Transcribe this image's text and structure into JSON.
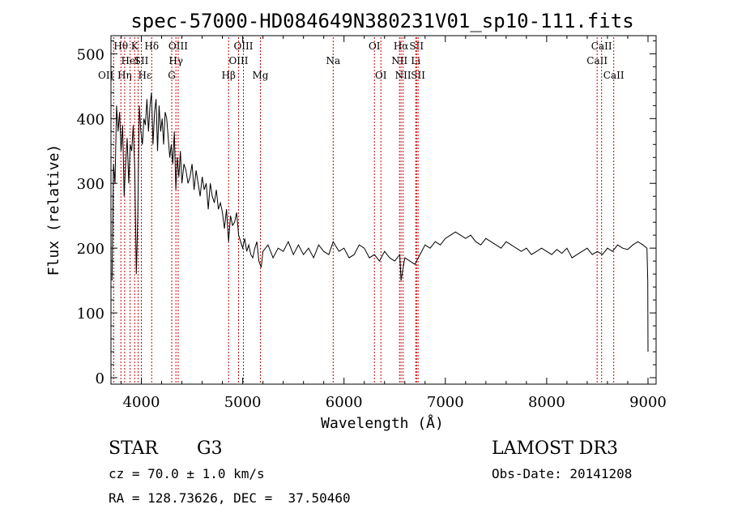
{
  "chart_data": {
    "type": "line",
    "title": "spec-57000-HD084649N380231V01_sp10-111.fits",
    "xlabel": "Wavelength (Å)",
    "ylabel": "Flux (relative)",
    "xlim": [
      3700,
      9080
    ],
    "ylim": [
      -10,
      528
    ],
    "x_ticks": [
      4000,
      5000,
      6000,
      7000,
      8000,
      9000
    ],
    "y_ticks": [
      0,
      100,
      200,
      300,
      400,
      500
    ],
    "grid": false,
    "line_color": "#000000",
    "marker_color": "#cc0000",
    "series": [
      {
        "x": [
          3710,
          3725,
          3740,
          3755,
          3770,
          3785,
          3800,
          3815,
          3830,
          3845,
          3860,
          3875,
          3890,
          3905,
          3920,
          3935,
          3950,
          3965,
          3980,
          3995,
          4010,
          4025,
          4040,
          4055,
          4070,
          4085,
          4100,
          4115,
          4130,
          4145,
          4160,
          4175,
          4190,
          4205,
          4220,
          4235,
          4250,
          4265,
          4280,
          4295,
          4310,
          4325,
          4340,
          4355,
          4370,
          4385,
          4400,
          4420,
          4440,
          4460,
          4480,
          4500,
          4520,
          4540,
          4560,
          4580,
          4600,
          4620,
          4640,
          4660,
          4680,
          4700,
          4720,
          4740,
          4760,
          4780,
          4800,
          4820,
          4840,
          4861,
          4880,
          4900,
          4920,
          4940,
          4960,
          4980,
          5000,
          5020,
          5040,
          5060,
          5080,
          5100,
          5120,
          5140,
          5160,
          5183,
          5200,
          5250,
          5300,
          5350,
          5400,
          5450,
          5500,
          5550,
          5600,
          5650,
          5700,
          5750,
          5800,
          5850,
          5893,
          5950,
          6000,
          6050,
          6100,
          6150,
          6200,
          6250,
          6300,
          6350,
          6400,
          6450,
          6500,
          6550,
          6563,
          6600,
          6650,
          6700,
          6750,
          6800,
          6850,
          6900,
          6950,
          7000,
          7050,
          7100,
          7150,
          7200,
          7250,
          7300,
          7350,
          7400,
          7450,
          7500,
          7550,
          7600,
          7650,
          7700,
          7750,
          7800,
          7850,
          7900,
          7950,
          8000,
          8050,
          8100,
          8150,
          8200,
          8250,
          8300,
          8350,
          8400,
          8450,
          8500,
          8550,
          8600,
          8650,
          8700,
          8750,
          8800,
          8850,
          8900,
          8950,
          8990,
          8998,
          9000
        ],
        "y": [
          150,
          330,
          300,
          420,
          380,
          410,
          350,
          390,
          280,
          330,
          370,
          300,
          360,
          350,
          390,
          320,
          160,
          250,
          420,
          380,
          360,
          400,
          390,
          430,
          380,
          420,
          440,
          360,
          410,
          430,
          350,
          420,
          380,
          400,
          360,
          410,
          400,
          370,
          340,
          360,
          330,
          380,
          290,
          340,
          310,
          350,
          300,
          330,
          320,
          300,
          310,
          330,
          290,
          320,
          300,
          280,
          310,
          290,
          300,
          260,
          300,
          280,
          270,
          290,
          260,
          270,
          255,
          230,
          260,
          210,
          250,
          235,
          240,
          255,
          220,
          210,
          200,
          215,
          195,
          205,
          190,
          185,
          200,
          210,
          180,
          170,
          195,
          205,
          185,
          200,
          195,
          210,
          190,
          205,
          190,
          200,
          185,
          205,
          195,
          190,
          210,
          195,
          200,
          185,
          190,
          205,
          200,
          185,
          190,
          180,
          195,
          185,
          180,
          190,
          150,
          185,
          180,
          175,
          190,
          205,
          200,
          210,
          205,
          215,
          220,
          225,
          220,
          215,
          220,
          210,
          205,
          215,
          210,
          205,
          200,
          210,
          205,
          200,
          195,
          200,
          190,
          195,
          200,
          195,
          190,
          198,
          192,
          200,
          185,
          190,
          195,
          200,
          190,
          195,
          190,
          200,
          195,
          205,
          200,
          198,
          205,
          210,
          205,
          200,
          150,
          40
        ]
      }
    ],
    "line_markers": [
      {
        "x": 3727,
        "label": "OII",
        "row": 2,
        "anchor": "end"
      },
      {
        "x": 3798,
        "label": "Hθ",
        "row": 0,
        "anchor": "middle"
      },
      {
        "x": 3835,
        "label": "Hη",
        "row": 2,
        "anchor": "middle"
      },
      {
        "x": 3889,
        "label": "HeI",
        "row": 1,
        "anchor": "middle"
      },
      {
        "x": 3934,
        "label": "K",
        "row": 0,
        "anchor": "middle"
      },
      {
        "x": 3968,
        "label": "Hε",
        "row": 2,
        "anchor": "start"
      },
      {
        "x": 4000,
        "label": "SII",
        "row": 1,
        "anchor": "middle"
      },
      {
        "x": 4102,
        "label": "Hδ",
        "row": 0,
        "anchor": "middle"
      },
      {
        "x": 4300,
        "label": "G",
        "row": 2,
        "anchor": "middle"
      },
      {
        "x": 4341,
        "label": "Hγ",
        "row": 1,
        "anchor": "middle"
      },
      {
        "x": 4363,
        "label": "OIII",
        "row": 0,
        "anchor": "middle"
      },
      {
        "x": 4861,
        "label": "Hβ",
        "row": 2,
        "anchor": "middle"
      },
      {
        "x": 4959,
        "label": "OIII",
        "row": 1,
        "anchor": "middle"
      },
      {
        "x": 5007,
        "label": "OIII",
        "row": 0,
        "anchor": "middle"
      },
      {
        "x": 5175,
        "label": "Mg",
        "row": 2,
        "anchor": "middle"
      },
      {
        "x": 5893,
        "label": "Na",
        "row": 1,
        "anchor": "middle"
      },
      {
        "x": 6300,
        "label": "OI",
        "row": 0,
        "anchor": "middle"
      },
      {
        "x": 6364,
        "label": "OI",
        "row": 2,
        "anchor": "middle"
      },
      {
        "x": 6548,
        "label": "NII",
        "row": 1,
        "anchor": "middle"
      },
      {
        "x": 6563,
        "label": "Hα",
        "row": 0,
        "anchor": "middle"
      },
      {
        "x": 6583,
        "label": "NII",
        "row": 2,
        "anchor": "middle"
      },
      {
        "x": 6708,
        "label": "Li",
        "row": 1,
        "anchor": "middle"
      },
      {
        "x": 6716,
        "label": "SII",
        "row": 0,
        "anchor": "middle"
      },
      {
        "x": 6731,
        "label": "SII",
        "row": 2,
        "anchor": "middle"
      },
      {
        "x": 8498,
        "label": "CaII",
        "row": 1,
        "anchor": "middle"
      },
      {
        "x": 8542,
        "label": "CaII",
        "row": 0,
        "anchor": "middle"
      },
      {
        "x": 8662,
        "label": "CaII",
        "row": 2,
        "anchor": "middle"
      }
    ]
  },
  "info": {
    "object_class": "STAR",
    "subclass": "G3",
    "survey": "LAMOST DR3",
    "redshift": "cz = 70.0 ± 1.0 km/s",
    "obs_date": "Obs-Date: 20141208",
    "coords": "RA = 128.73626, DEC =  37.50460"
  }
}
